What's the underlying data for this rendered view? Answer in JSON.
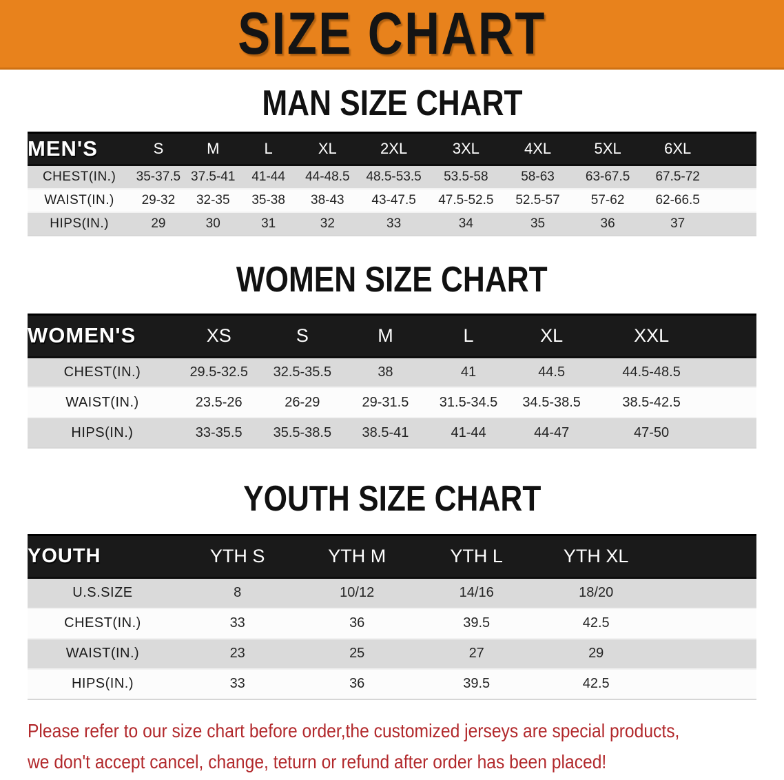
{
  "banner": {
    "title": "SIZE CHART",
    "bg_color": "#e8821c"
  },
  "sections": [
    {
      "heading": "MAN SIZE CHART",
      "header_label": "MEN'S",
      "sizes": [
        "S",
        "M",
        "L",
        "XL",
        "2XL",
        "3XL",
        "4XL",
        "5XL",
        "6XL"
      ],
      "rows": [
        {
          "label": "CHEST(IN.)",
          "values": [
            "35-37.5",
            "37.5-41",
            "41-44",
            "44-48.5",
            "48.5-53.5",
            "53.5-58",
            "58-63",
            "63-67.5",
            "67.5-72"
          ]
        },
        {
          "label": "WAIST(IN.)",
          "values": [
            "29-32",
            "32-35",
            "35-38",
            "38-43",
            "43-47.5",
            "47.5-52.5",
            "52.5-57",
            "57-62",
            "62-66.5"
          ]
        },
        {
          "label": "HIPS(IN.)",
          "values": [
            "29",
            "30",
            "31",
            "32",
            "33",
            "34",
            "35",
            "36",
            "37"
          ]
        }
      ]
    },
    {
      "heading": "WOMEN SIZE CHART",
      "header_label": "WOMEN'S",
      "sizes": [
        "XS",
        "S",
        "M",
        "L",
        "XL",
        "XXL"
      ],
      "rows": [
        {
          "label": "CHEST(IN.)",
          "values": [
            "29.5-32.5",
            "32.5-35.5",
            "38",
            "41",
            "44.5",
            "44.5-48.5"
          ]
        },
        {
          "label": "WAIST(IN.)",
          "values": [
            "23.5-26",
            "26-29",
            "29-31.5",
            "31.5-34.5",
            "34.5-38.5",
            "38.5-42.5"
          ]
        },
        {
          "label": "HIPS(IN.)",
          "values": [
            "33-35.5",
            "35.5-38.5",
            "38.5-41",
            "41-44",
            "44-47",
            "47-50"
          ]
        }
      ]
    },
    {
      "heading": "YOUTH SIZE CHART",
      "header_label": "YOUTH",
      "sizes": [
        "YTH S",
        "YTH M",
        "YTH L",
        "YTH XL"
      ],
      "rows": [
        {
          "label": "U.S.SIZE",
          "values": [
            "8",
            "10/12",
            "14/16",
            "18/20"
          ]
        },
        {
          "label": "CHEST(IN.)",
          "values": [
            "33",
            "36",
            "39.5",
            "42.5"
          ]
        },
        {
          "label": "WAIST(IN.)",
          "values": [
            "23",
            "25",
            "27",
            "29"
          ]
        },
        {
          "label": "HIPS(IN.)",
          "values": [
            "33",
            "36",
            "39.5",
            "42.5"
          ]
        }
      ]
    }
  ],
  "footer": {
    "line1": "Please refer to our size chart before order,the customized jerseys are special products,",
    "line2": "we don't accept cancel, change, teturn or refund after order has been placed!",
    "text_color": "#b2282b"
  }
}
